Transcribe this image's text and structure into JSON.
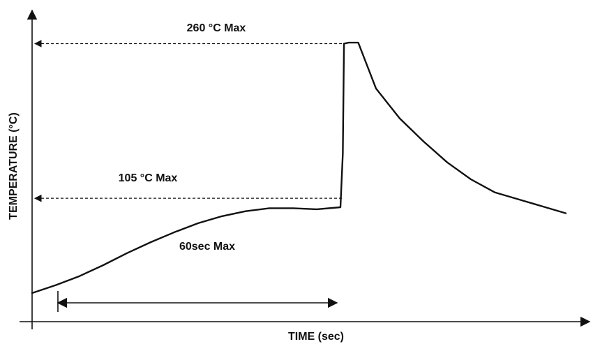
{
  "chart_data": {
    "type": "line",
    "title": "",
    "xlabel": "TIME (sec)",
    "ylabel": "TEMPERATURE (°C)",
    "grid": false,
    "legend": "none",
    "series": [
      {
        "points": [
          [
            0,
            10
          ],
          [
            20,
            18
          ],
          [
            40,
            27
          ],
          [
            60,
            38
          ],
          [
            80,
            50
          ],
          [
            100,
            61
          ],
          [
            120,
            71
          ],
          [
            140,
            80
          ],
          [
            160,
            87
          ],
          [
            180,
            92
          ],
          [
            200,
            95
          ],
          [
            220,
            95
          ],
          [
            240,
            94
          ],
          [
            260,
            96
          ],
          [
            262,
            150
          ],
          [
            263,
            260
          ],
          [
            267,
            261
          ],
          [
            275,
            261
          ],
          [
            290,
            215
          ],
          [
            310,
            185
          ],
          [
            330,
            162
          ],
          [
            350,
            141
          ],
          [
            370,
            124
          ],
          [
            390,
            111
          ],
          [
            410,
            104
          ],
          [
            430,
            97
          ],
          [
            450,
            90
          ]
        ]
      }
    ],
    "annotations": {
      "peak_label": "260 °C Max",
      "preheat_label": "105 °C Max",
      "duration_label": "60sec Max",
      "peak_value": 260,
      "preheat_value": 105
    },
    "colors": {
      "line": "#111111",
      "dashed": "#111111"
    }
  }
}
